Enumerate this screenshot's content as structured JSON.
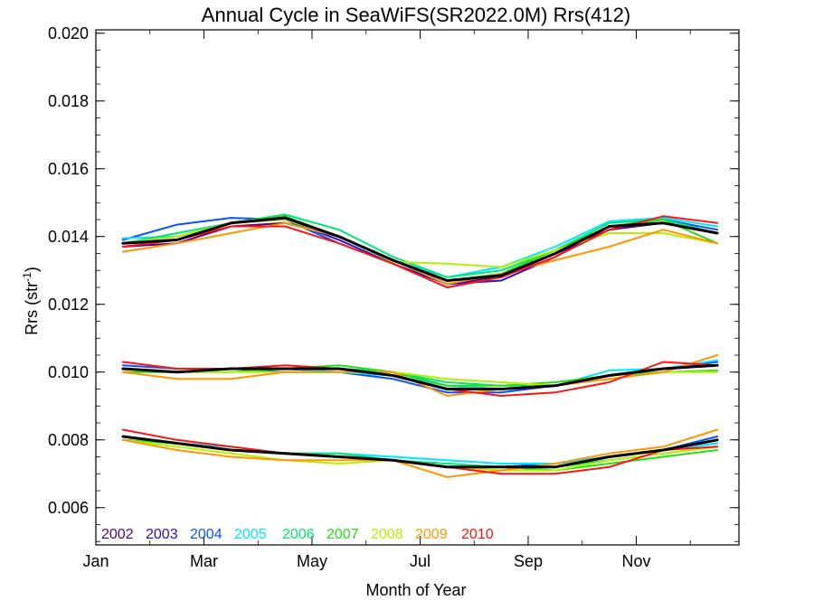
{
  "chart_data": {
    "type": "line",
    "title": "Annual Cycle in SeaWiFS(SR2022.0M) Rrs(412)",
    "xlabel": "Month of Year",
    "ylabel_main": "Rrs (str",
    "ylabel_sup": "-1",
    "ylabel_end": ")",
    "xlim": [
      1,
      12.9
    ],
    "ylim": [
      0.0049,
      0.0201
    ],
    "x_ticks": [
      {
        "value": 1,
        "label": "Jan"
      },
      {
        "value": 3,
        "label": "Mar"
      },
      {
        "value": 5,
        "label": "May"
      },
      {
        "value": 7,
        "label": "Jul"
      },
      {
        "value": 9,
        "label": "Sep"
      },
      {
        "value": 11,
        "label": "Nov"
      }
    ],
    "y_ticks": [
      {
        "value": 0.006,
        "label": "0.006"
      },
      {
        "value": 0.008,
        "label": "0.008"
      },
      {
        "value": 0.01,
        "label": "0.010"
      },
      {
        "value": 0.012,
        "label": "0.012"
      },
      {
        "value": 0.014,
        "label": "0.014"
      },
      {
        "value": 0.016,
        "label": "0.016"
      },
      {
        "value": 0.018,
        "label": "0.018"
      },
      {
        "value": 0.02,
        "label": "0.020"
      }
    ],
    "legend": [
      {
        "label": "2002",
        "color": "#5a0078"
      },
      {
        "label": "2003",
        "color": "#2a10c8"
      },
      {
        "label": "2004",
        "color": "#0a50ff"
      },
      {
        "label": "2005",
        "color": "#00e6ff"
      },
      {
        "label": "2006",
        "color": "#00e676"
      },
      {
        "label": "2007",
        "color": "#28dc14"
      },
      {
        "label": "2008",
        "color": "#b4f000"
      },
      {
        "label": "2009",
        "color": "#ff9600"
      },
      {
        "label": "2010",
        "color": "#ff1414"
      }
    ],
    "x": [
      1.5,
      2.5,
      3.5,
      4.5,
      5.5,
      6.5,
      7.5,
      8.5,
      9.5,
      10.5,
      11.5,
      12.5
    ],
    "series": [
      {
        "year": "2002",
        "group": "upper",
        "color": "#5a0078",
        "values": [
          0.0137,
          0.0138,
          0.0143,
          0.0144,
          0.014,
          0.0133,
          0.0126,
          0.0128,
          0.0135,
          0.0142,
          0.0144,
          0.0141
        ]
      },
      {
        "year": "2003",
        "group": "upper",
        "color": "#2a10c8",
        "values": [
          0.0138,
          0.0139,
          0.0144,
          0.0145,
          0.0139,
          0.0132,
          0.0126,
          0.0127,
          0.0134,
          0.0143,
          0.0144,
          0.0141
        ]
      },
      {
        "year": "2004",
        "group": "upper",
        "color": "#0a50ff",
        "values": [
          0.0139,
          0.01435,
          0.01455,
          0.0145,
          0.0138,
          0.0132,
          0.0125,
          0.0128,
          0.0135,
          0.0143,
          0.0145,
          0.0142
        ]
      },
      {
        "year": "2005",
        "group": "upper",
        "color": "#00e6ff",
        "values": [
          0.01395,
          0.014,
          0.0144,
          0.0146,
          0.014,
          0.0133,
          0.0128,
          0.0131,
          0.0137,
          0.01445,
          0.01455,
          0.0143
        ]
      },
      {
        "year": "2006",
        "group": "upper",
        "color": "#00e676",
        "values": [
          0.0138,
          0.0141,
          0.0144,
          0.01465,
          0.0142,
          0.0134,
          0.0128,
          0.013,
          0.0136,
          0.0144,
          0.0145,
          0.0141
        ]
      },
      {
        "year": "2007",
        "group": "upper",
        "color": "#28dc14",
        "values": [
          0.0138,
          0.014,
          0.0144,
          0.0146,
          0.014,
          0.0133,
          0.0127,
          0.0129,
          0.0136,
          0.0143,
          0.0145,
          0.0138
        ]
      },
      {
        "year": "2008",
        "group": "upper",
        "color": "#b4f000",
        "values": [
          0.0138,
          0.014,
          0.0144,
          0.0145,
          0.014,
          0.01325,
          0.0132,
          0.0131,
          0.0136,
          0.0141,
          0.0141,
          0.0138
        ]
      },
      {
        "year": "2009",
        "group": "upper",
        "color": "#ff9600",
        "values": [
          0.01355,
          0.0138,
          0.0141,
          0.0144,
          0.014,
          0.0133,
          0.0126,
          0.0129,
          0.0133,
          0.0137,
          0.0142,
          0.0138
        ]
      },
      {
        "year": "2010",
        "group": "upper",
        "color": "#ff1414",
        "values": [
          0.0137,
          0.0139,
          0.0143,
          0.0143,
          0.0138,
          0.0132,
          0.0125,
          0.0128,
          0.0134,
          0.0142,
          0.0146,
          0.0144
        ]
      },
      {
        "year": "mean",
        "group": "upper",
        "color": "#000000",
        "values": [
          0.0138,
          0.0139,
          0.0144,
          0.01455,
          0.014,
          0.0133,
          0.0127,
          0.01285,
          0.0135,
          0.0143,
          0.0144,
          0.0141
        ]
      },
      {
        "year": "2002",
        "group": "middle",
        "color": "#5a0078",
        "values": [
          0.0101,
          0.01,
          0.0101,
          0.0101,
          0.0101,
          0.01,
          0.0096,
          0.0095,
          0.0096,
          0.0099,
          0.0101,
          0.0102
        ]
      },
      {
        "year": "2003",
        "group": "middle",
        "color": "#2a10c8",
        "values": [
          0.0101,
          0.01,
          0.0101,
          0.0101,
          0.01,
          0.0099,
          0.0095,
          0.0095,
          0.0096,
          0.0099,
          0.0101,
          0.0102
        ]
      },
      {
        "year": "2004",
        "group": "middle",
        "color": "#0a50ff",
        "values": [
          0.0102,
          0.0101,
          0.0101,
          0.01,
          0.01,
          0.0098,
          0.0094,
          0.0094,
          0.0096,
          0.0099,
          0.0101,
          0.0103
        ]
      },
      {
        "year": "2005",
        "group": "middle",
        "color": "#00e6ff",
        "values": [
          0.0101,
          0.01,
          0.0101,
          0.0101,
          0.01,
          0.0099,
          0.0096,
          0.0095,
          0.0096,
          0.01005,
          0.0101,
          0.01035
        ]
      },
      {
        "year": "2006",
        "group": "middle",
        "color": "#00e676",
        "values": [
          0.0101,
          0.01,
          0.0101,
          0.0101,
          0.0101,
          0.01,
          0.0097,
          0.0096,
          0.0096,
          0.0099,
          0.0101,
          0.0102
        ]
      },
      {
        "year": "2007",
        "group": "middle",
        "color": "#28dc14",
        "values": [
          0.01,
          0.01,
          0.01,
          0.0101,
          0.0102,
          0.01,
          0.0096,
          0.0096,
          0.0097,
          0.0099,
          0.01,
          0.01005
        ]
      },
      {
        "year": "2008",
        "group": "middle",
        "color": "#b4f000",
        "values": [
          0.0101,
          0.01,
          0.01,
          0.01,
          0.01,
          0.01,
          0.0098,
          0.0097,
          0.0096,
          0.0098,
          0.01,
          0.01
        ]
      },
      {
        "year": "2009",
        "group": "middle",
        "color": "#ff9600",
        "values": [
          0.01,
          0.0098,
          0.0098,
          0.01,
          0.01,
          0.01,
          0.0093,
          0.0095,
          0.0096,
          0.0098,
          0.01,
          0.0105
        ]
      },
      {
        "year": "2010",
        "group": "middle",
        "color": "#ff1414",
        "values": [
          0.0103,
          0.0101,
          0.0101,
          0.0102,
          0.0101,
          0.0099,
          0.0095,
          0.0093,
          0.0094,
          0.0097,
          0.0103,
          0.0102
        ]
      },
      {
        "year": "mean",
        "group": "middle",
        "color": "#000000",
        "values": [
          0.0101,
          0.01,
          0.0101,
          0.0101,
          0.0101,
          0.0099,
          0.0095,
          0.0095,
          0.0096,
          0.0099,
          0.0101,
          0.0102
        ]
      },
      {
        "year": "2002",
        "group": "lower",
        "color": "#5a0078",
        "values": [
          0.0081,
          0.0079,
          0.0077,
          0.0076,
          0.0075,
          0.0074,
          0.0072,
          0.0072,
          0.0073,
          0.0075,
          0.0077,
          0.0079
        ]
      },
      {
        "year": "2003",
        "group": "lower",
        "color": "#2a10c8",
        "values": [
          0.0081,
          0.0079,
          0.0077,
          0.0076,
          0.0075,
          0.0074,
          0.0072,
          0.0072,
          0.0072,
          0.0075,
          0.0077,
          0.008
        ]
      },
      {
        "year": "2004",
        "group": "lower",
        "color": "#0a50ff",
        "values": [
          0.0081,
          0.0079,
          0.0077,
          0.0076,
          0.0075,
          0.0074,
          0.0072,
          0.0072,
          0.0073,
          0.0075,
          0.0077,
          0.0081
        ]
      },
      {
        "year": "2005",
        "group": "lower",
        "color": "#00e6ff",
        "values": [
          0.008,
          0.0079,
          0.0078,
          0.0076,
          0.0076,
          0.0075,
          0.0074,
          0.0073,
          0.0073,
          0.0075,
          0.0077,
          0.0079
        ]
      },
      {
        "year": "2006",
        "group": "lower",
        "color": "#00e676",
        "values": [
          0.008,
          0.0079,
          0.0077,
          0.0076,
          0.0076,
          0.0074,
          0.0073,
          0.0072,
          0.0072,
          0.0074,
          0.0076,
          0.0078
        ]
      },
      {
        "year": "2007",
        "group": "lower",
        "color": "#28dc14",
        "values": [
          0.008,
          0.0079,
          0.0077,
          0.0076,
          0.0075,
          0.0074,
          0.0072,
          0.0072,
          0.0071,
          0.0073,
          0.0075,
          0.0077
        ]
      },
      {
        "year": "2008",
        "group": "lower",
        "color": "#b4f000",
        "values": [
          0.008,
          0.0078,
          0.0076,
          0.0074,
          0.0073,
          0.0074,
          0.0072,
          0.0071,
          0.0071,
          0.0074,
          0.0076,
          0.0078
        ]
      },
      {
        "year": "2009",
        "group": "lower",
        "color": "#ff9600",
        "values": [
          0.008,
          0.0077,
          0.0075,
          0.0074,
          0.0074,
          0.0074,
          0.0069,
          0.0071,
          0.0073,
          0.0076,
          0.0078,
          0.0083
        ]
      },
      {
        "year": "2010",
        "group": "lower",
        "color": "#ff1414",
        "values": [
          0.0083,
          0.008,
          0.0078,
          0.0076,
          0.0075,
          0.0074,
          0.0072,
          0.007,
          0.007,
          0.0072,
          0.0077,
          0.0078
        ]
      },
      {
        "year": "mean",
        "group": "lower",
        "color": "#000000",
        "values": [
          0.0081,
          0.0079,
          0.0077,
          0.0076,
          0.0075,
          0.0074,
          0.0072,
          0.0072,
          0.0072,
          0.0075,
          0.0077,
          0.008
        ]
      }
    ]
  }
}
